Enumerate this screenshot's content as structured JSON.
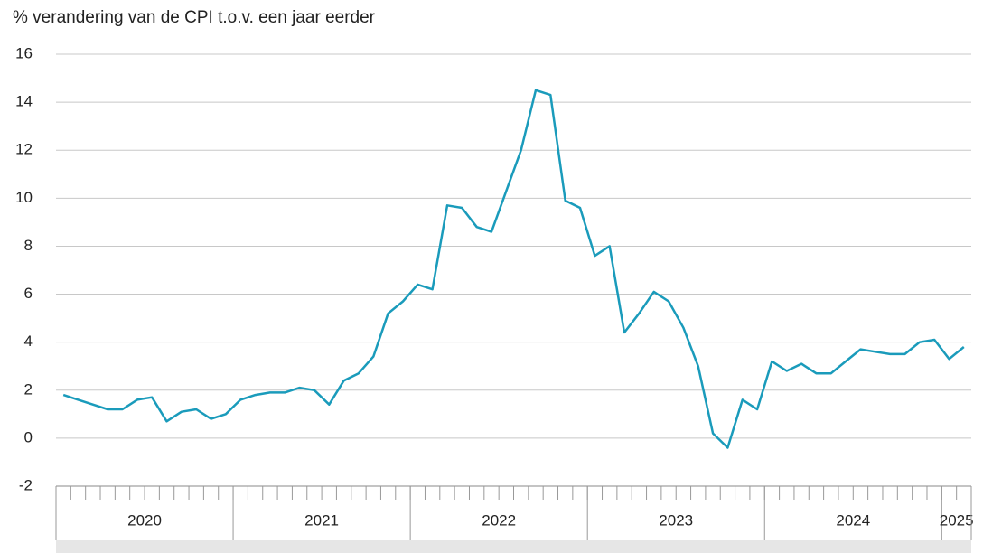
{
  "chart_data": {
    "type": "line",
    "title": "% verandering van de CPI t.o.v. een jaar eerder",
    "categories": [
      null,
      null,
      null,
      null,
      null,
      null,
      null,
      null,
      null,
      null,
      null,
      null,
      null,
      null,
      null,
      null,
      null,
      null,
      null,
      null,
      null,
      null,
      null,
      null,
      null,
      null,
      null,
      null,
      null,
      null,
      null,
      null,
      null,
      null,
      null,
      null,
      null,
      null,
      null,
      null,
      null,
      null,
      null,
      null,
      null,
      null,
      null,
      null,
      null,
      null,
      null,
      null,
      null,
      null,
      null,
      null,
      null,
      null,
      null,
      null,
      null,
      null
    ],
    "groups": [
      {
        "label": "2020",
        "count": 12
      },
      {
        "label": "2021",
        "count": 12
      },
      {
        "label": "2022",
        "count": 12
      },
      {
        "label": "2023",
        "count": 12
      },
      {
        "label": "2024",
        "count": 12
      },
      {
        "label": "2025",
        "count": 2
      }
    ],
    "series": [
      {
        "name": "CPI",
        "color": "#1a9bbb",
        "values": [
          1.8,
          1.6,
          1.4,
          1.2,
          1.2,
          1.6,
          1.7,
          0.7,
          1.1,
          1.2,
          0.8,
          1.0,
          1.6,
          1.8,
          1.9,
          1.9,
          2.1,
          2.0,
          1.4,
          2.4,
          2.7,
          3.4,
          5.2,
          5.7,
          6.4,
          6.2,
          9.7,
          9.6,
          8.8,
          8.6,
          10.3,
          12.0,
          14.5,
          14.3,
          9.9,
          9.6,
          7.6,
          8.0,
          4.4,
          5.2,
          6.1,
          5.7,
          4.6,
          3.0,
          0.2,
          -0.4,
          1.6,
          1.2,
          3.2,
          2.8,
          3.1,
          2.7,
          2.7,
          3.2,
          3.7,
          3.6,
          3.5,
          3.5,
          4.0,
          4.1,
          3.3,
          3.8
        ]
      }
    ],
    "ylim": [
      -2,
      16
    ],
    "yticks": [
      -2,
      0,
      2,
      4,
      6,
      8,
      10,
      12,
      14,
      16
    ],
    "grid": true
  }
}
